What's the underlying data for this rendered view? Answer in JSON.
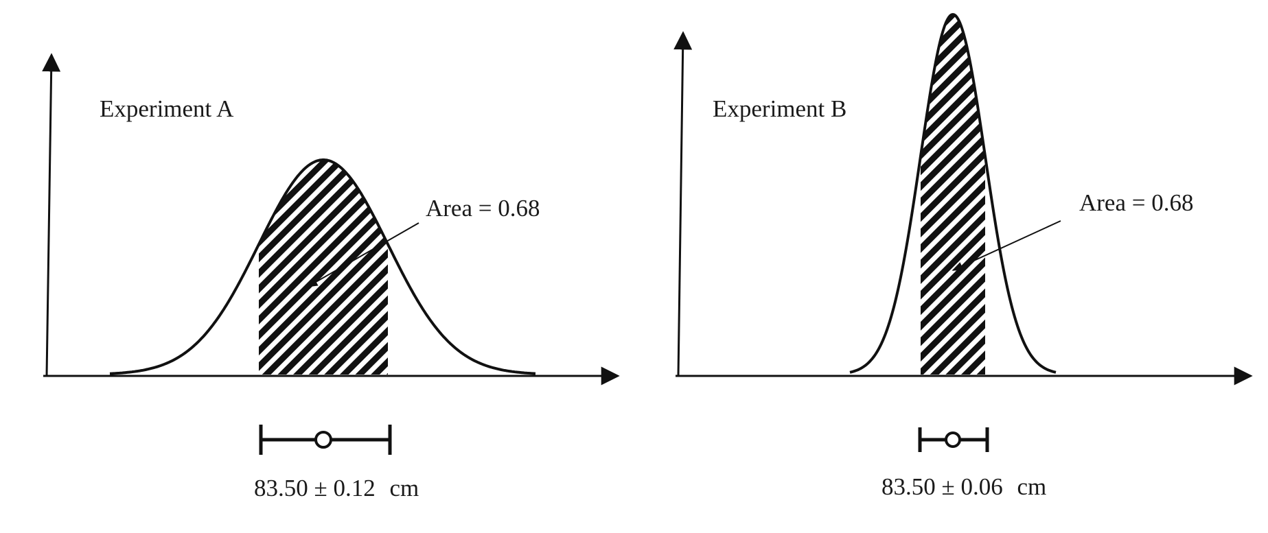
{
  "panels": [
    {
      "title": "Experiment A",
      "area_label": "Area = 0.68",
      "mean": 83.5,
      "uncertainty": 0.12,
      "unit": "cm",
      "measurement_text": "83.50 ± 0.12",
      "unit_text": "cm",
      "shaded_fraction": 0.68
    },
    {
      "title": "Experiment B",
      "area_label": "Area = 0.68",
      "mean": 83.5,
      "uncertainty": 0.06,
      "unit": "cm",
      "measurement_text": "83.50 ± 0.06",
      "unit_text": "cm",
      "shaded_fraction": 0.68
    }
  ]
}
